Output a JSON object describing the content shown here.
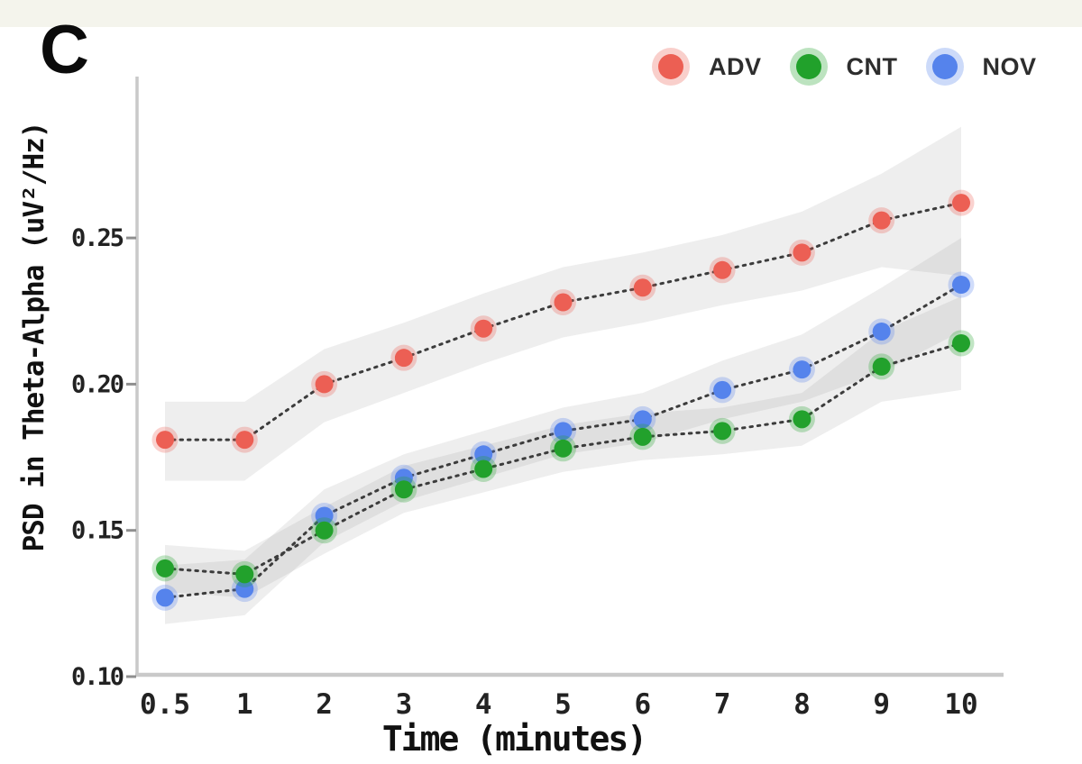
{
  "panel_label": "C",
  "legend": {
    "items": [
      {
        "label": "ADV",
        "color": "#ec5f54"
      },
      {
        "label": "CNT",
        "color": "#22a12c"
      },
      {
        "label": "NOV",
        "color": "#5583ec"
      }
    ]
  },
  "chart_data": {
    "type": "line",
    "title": "",
    "xlabel": "Time (minutes)",
    "ylabel": "PSD in Theta-Alpha (uV²/Hz)",
    "x_categories": [
      "0.5",
      "1",
      "2",
      "3",
      "4",
      "5",
      "6",
      "7",
      "8",
      "9",
      "10"
    ],
    "y_ticks": [
      0.1,
      0.15,
      0.2,
      0.25
    ],
    "y_tick_labels": [
      "0.10",
      "0.15",
      "0.20",
      "0.25"
    ],
    "ylim": [
      0.1,
      0.3
    ],
    "grid": false,
    "legend_position": "top-right",
    "line_style": "dotted",
    "band_fill": "rgba(138,138,138,0.14)",
    "series": [
      {
        "name": "ADV",
        "color": "#ec5f54",
        "values": [
          0.181,
          0.181,
          0.2,
          0.209,
          0.219,
          0.228,
          0.233,
          0.239,
          0.245,
          0.256,
          0.262
        ],
        "upper": [
          0.194,
          0.194,
          0.212,
          0.221,
          0.231,
          0.24,
          0.245,
          0.251,
          0.259,
          0.272,
          0.288
        ],
        "lower": [
          0.167,
          0.167,
          0.187,
          0.197,
          0.207,
          0.216,
          0.221,
          0.227,
          0.232,
          0.24,
          0.237
        ]
      },
      {
        "name": "NOV",
        "color": "#5583ec",
        "values": [
          0.127,
          0.13,
          0.155,
          0.168,
          0.176,
          0.184,
          0.188,
          0.198,
          0.205,
          0.218,
          0.234
        ],
        "upper": [
          0.138,
          0.14,
          0.164,
          0.176,
          0.184,
          0.192,
          0.197,
          0.208,
          0.217,
          0.233,
          0.25
        ],
        "lower": [
          0.118,
          0.121,
          0.146,
          0.16,
          0.168,
          0.176,
          0.18,
          0.188,
          0.194,
          0.204,
          0.218
        ]
      },
      {
        "name": "CNT",
        "color": "#22a12c",
        "values": [
          0.137,
          0.135,
          0.15,
          0.164,
          0.171,
          0.178,
          0.182,
          0.184,
          0.188,
          0.206,
          0.214
        ],
        "upper": [
          0.145,
          0.143,
          0.158,
          0.172,
          0.179,
          0.186,
          0.19,
          0.192,
          0.197,
          0.218,
          0.23
        ],
        "lower": [
          0.129,
          0.127,
          0.142,
          0.156,
          0.163,
          0.17,
          0.174,
          0.176,
          0.179,
          0.194,
          0.198
        ]
      }
    ]
  }
}
